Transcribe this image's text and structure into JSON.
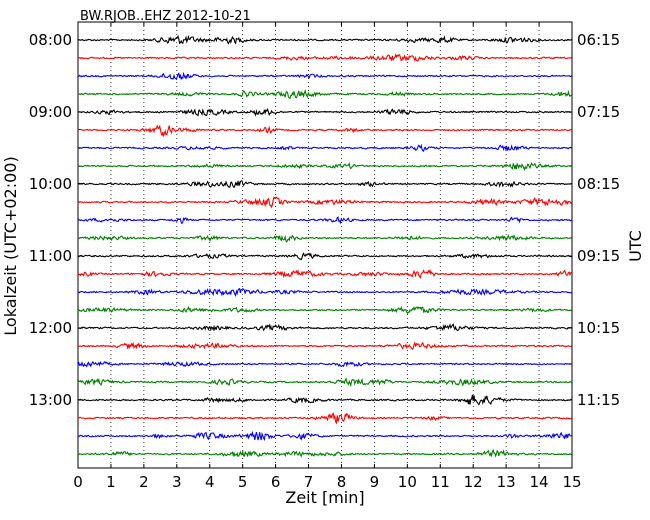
{
  "chart_data": {
    "type": "line",
    "title": "BW.RJOB..EHZ 2012-10-21",
    "xlabel": "Zeit  [min]",
    "ylabel_left": "Lokalzeit (UTC+02:00)",
    "ylabel_right": "UTC",
    "xlim": [
      0,
      15
    ],
    "x_ticks": [
      "0",
      "1",
      "2",
      "3",
      "4",
      "5",
      "6",
      "7",
      "8",
      "9",
      "10",
      "11",
      "12",
      "13",
      "14",
      "15"
    ],
    "left_tick_labels": [
      "08:00",
      "09:00",
      "10:00",
      "11:00",
      "12:00",
      "13:00"
    ],
    "right_tick_labels": [
      "06:15",
      "07:15",
      "08:15",
      "09:15",
      "10:15",
      "11:15"
    ],
    "grid": "vertical dotted at each minute",
    "trace_colors": [
      "#000000",
      "#ff0000",
      "#0000ff",
      "#008000"
    ],
    "traces": [
      {
        "start": "08:00"
      },
      {
        "start": "08:15"
      },
      {
        "start": "08:30"
      },
      {
        "start": "08:45"
      },
      {
        "start": "09:00"
      },
      {
        "start": "09:15"
      },
      {
        "start": "09:30"
      },
      {
        "start": "09:45"
      },
      {
        "start": "10:00"
      },
      {
        "start": "10:15"
      },
      {
        "start": "10:30"
      },
      {
        "start": "10:45"
      },
      {
        "start": "11:00"
      },
      {
        "start": "11:15"
      },
      {
        "start": "11:30"
      },
      {
        "start": "11:45"
      },
      {
        "start": "12:00"
      },
      {
        "start": "12:15"
      },
      {
        "start": "12:30"
      },
      {
        "start": "12:45"
      },
      {
        "start": "13:00"
      },
      {
        "start": "13:15"
      },
      {
        "start": "13:30"
      },
      {
        "start": "13:45"
      }
    ]
  }
}
